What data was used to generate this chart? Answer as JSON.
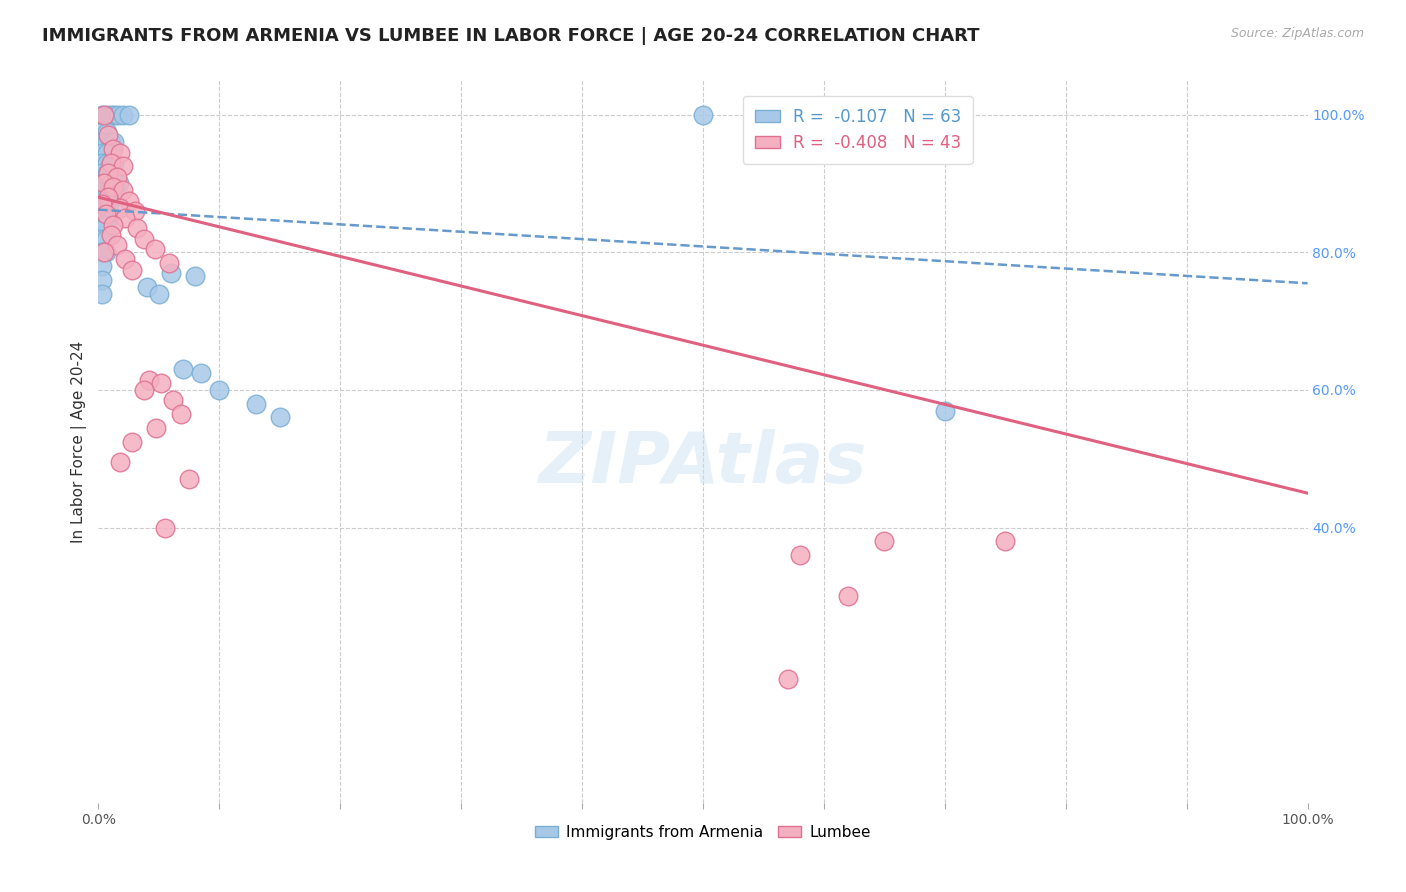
{
  "title": "IMMIGRANTS FROM ARMENIA VS LUMBEE IN LABOR FORCE | AGE 20-24 CORRELATION CHART",
  "source": "Source: ZipAtlas.com",
  "ylabel": "In Labor Force | Age 20-24",
  "xlim": [
    0.0,
    1.0
  ],
  "ylim": [
    0.0,
    1.05
  ],
  "plot_ylim": [
    0.0,
    1.05
  ],
  "x_ticks": [
    0.0,
    0.1,
    0.2,
    0.3,
    0.4,
    0.5,
    0.6,
    0.7,
    0.8,
    0.9,
    1.0
  ],
  "y_ticks_right": [
    0.4,
    0.6,
    0.8,
    1.0
  ],
  "y_tick_labels_right": [
    "40.0%",
    "60.0%",
    "80.0%",
    "100.0%"
  ],
  "grid_yticks": [
    0.4,
    0.6,
    0.8,
    1.0
  ],
  "legend_r_arm": "R =  -0.107",
  "legend_n_arm": "N = 63",
  "legend_r_lum": "R =  -0.408",
  "legend_n_lum": "N = 43",
  "grid_color": "#cccccc",
  "bg_color": "#ffffff",
  "armenia_color": "#a8c8e8",
  "armenia_edge_color": "#7bafd4",
  "lumbee_color": "#f4b0c0",
  "lumbee_edge_color": "#e07090",
  "armenia_line_color": "#6699cc",
  "lumbee_line_color": "#e06080",
  "watermark": "ZIPAtlas",
  "title_fontsize": 13,
  "axis_label_fontsize": 11,
  "tick_fontsize": 10,
  "armenia_scatter": [
    [
      0.003,
      1.0
    ],
    [
      0.007,
      1.0
    ],
    [
      0.01,
      1.0
    ],
    [
      0.013,
      1.0
    ],
    [
      0.016,
      1.0
    ],
    [
      0.02,
      1.0
    ],
    [
      0.025,
      1.0
    ],
    [
      0.003,
      0.975
    ],
    [
      0.007,
      0.975
    ],
    [
      0.003,
      0.96
    ],
    [
      0.007,
      0.96
    ],
    [
      0.01,
      0.96
    ],
    [
      0.013,
      0.96
    ],
    [
      0.003,
      0.945
    ],
    [
      0.007,
      0.945
    ],
    [
      0.003,
      0.93
    ],
    [
      0.007,
      0.93
    ],
    [
      0.01,
      0.93
    ],
    [
      0.013,
      0.93
    ],
    [
      0.003,
      0.915
    ],
    [
      0.007,
      0.915
    ],
    [
      0.01,
      0.915
    ],
    [
      0.003,
      0.9
    ],
    [
      0.006,
      0.9
    ],
    [
      0.01,
      0.9
    ],
    [
      0.013,
      0.9
    ],
    [
      0.017,
      0.9
    ],
    [
      0.003,
      0.89
    ],
    [
      0.006,
      0.89
    ],
    [
      0.009,
      0.89
    ],
    [
      0.013,
      0.89
    ],
    [
      0.003,
      0.88
    ],
    [
      0.006,
      0.88
    ],
    [
      0.009,
      0.88
    ],
    [
      0.012,
      0.88
    ],
    [
      0.003,
      0.87
    ],
    [
      0.006,
      0.87
    ],
    [
      0.009,
      0.87
    ],
    [
      0.003,
      0.86
    ],
    [
      0.006,
      0.86
    ],
    [
      0.003,
      0.85
    ],
    [
      0.006,
      0.85
    ],
    [
      0.009,
      0.85
    ],
    [
      0.003,
      0.84
    ],
    [
      0.006,
      0.84
    ],
    [
      0.003,
      0.82
    ],
    [
      0.006,
      0.82
    ],
    [
      0.003,
      0.8
    ],
    [
      0.006,
      0.8
    ],
    [
      0.003,
      0.78
    ],
    [
      0.003,
      0.76
    ],
    [
      0.003,
      0.74
    ],
    [
      0.06,
      0.77
    ],
    [
      0.08,
      0.765
    ],
    [
      0.04,
      0.75
    ],
    [
      0.05,
      0.74
    ],
    [
      0.07,
      0.63
    ],
    [
      0.085,
      0.625
    ],
    [
      0.1,
      0.6
    ],
    [
      0.13,
      0.58
    ],
    [
      0.15,
      0.56
    ],
    [
      0.5,
      1.0
    ],
    [
      0.7,
      0.57
    ]
  ],
  "lumbee_scatter": [
    [
      0.005,
      1.0
    ],
    [
      0.008,
      0.97
    ],
    [
      0.012,
      0.95
    ],
    [
      0.018,
      0.945
    ],
    [
      0.01,
      0.93
    ],
    [
      0.02,
      0.925
    ],
    [
      0.008,
      0.915
    ],
    [
      0.015,
      0.91
    ],
    [
      0.005,
      0.9
    ],
    [
      0.012,
      0.895
    ],
    [
      0.02,
      0.89
    ],
    [
      0.008,
      0.88
    ],
    [
      0.025,
      0.875
    ],
    [
      0.003,
      0.87
    ],
    [
      0.018,
      0.865
    ],
    [
      0.03,
      0.86
    ],
    [
      0.006,
      0.855
    ],
    [
      0.022,
      0.85
    ],
    [
      0.012,
      0.84
    ],
    [
      0.032,
      0.835
    ],
    [
      0.01,
      0.825
    ],
    [
      0.038,
      0.82
    ],
    [
      0.015,
      0.81
    ],
    [
      0.047,
      0.805
    ],
    [
      0.005,
      0.8
    ],
    [
      0.022,
      0.79
    ],
    [
      0.058,
      0.785
    ],
    [
      0.028,
      0.775
    ],
    [
      0.042,
      0.615
    ],
    [
      0.052,
      0.61
    ],
    [
      0.038,
      0.6
    ],
    [
      0.062,
      0.585
    ],
    [
      0.068,
      0.565
    ],
    [
      0.048,
      0.545
    ],
    [
      0.028,
      0.525
    ],
    [
      0.018,
      0.495
    ],
    [
      0.075,
      0.47
    ],
    [
      0.055,
      0.4
    ],
    [
      0.58,
      0.36
    ],
    [
      0.65,
      0.38
    ],
    [
      0.62,
      0.3
    ],
    [
      0.57,
      0.18
    ],
    [
      0.75,
      0.38
    ]
  ],
  "armenia_line_x": [
    0.0,
    1.0
  ],
  "armenia_line_y": [
    0.862,
    0.755
  ],
  "lumbee_line_x": [
    0.0,
    1.0
  ],
  "lumbee_line_y": [
    0.88,
    0.45
  ]
}
